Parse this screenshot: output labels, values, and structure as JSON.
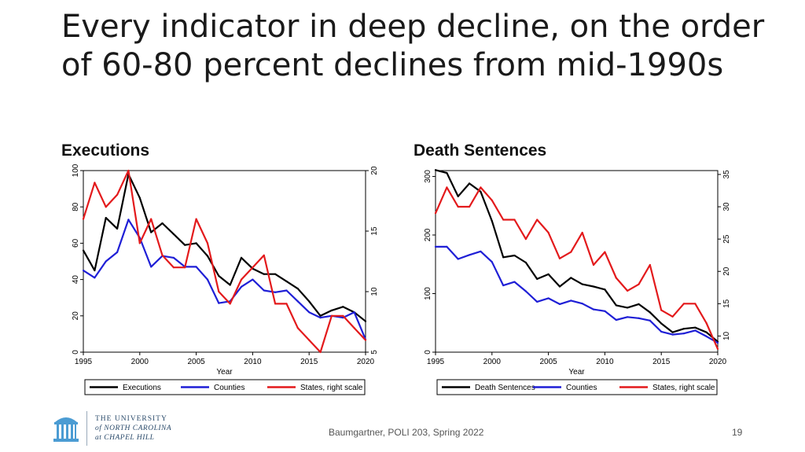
{
  "slide": {
    "title": "Every indicator in deep decline, on the order of 60-80 percent declines from mid-1990s",
    "footer": "Baumgartner, POLI 203, Spring 2022",
    "page_number": "19",
    "logo_lines": [
      "THE UNIVERSITY",
      "of NORTH CAROLINA",
      "at CHAPEL HILL"
    ]
  },
  "colors": {
    "series1": "#000000",
    "series2": "#1f1fd6",
    "series3": "#e31a1c"
  },
  "chart_data": [
    {
      "type": "line",
      "heading": "Executions",
      "xlabel": "Year",
      "xlim": [
        1995,
        2020
      ],
      "xticks": [
        1995,
        2000,
        2005,
        2010,
        2015,
        2020
      ],
      "left_axis": {
        "range": [
          0,
          100
        ],
        "ticks": [
          0,
          20,
          40,
          60,
          80,
          100
        ]
      },
      "right_axis": {
        "range": [
          5,
          20
        ],
        "ticks": [
          5,
          10,
          15,
          20
        ]
      },
      "x": [
        1995,
        1996,
        1997,
        1998,
        1999,
        2000,
        2001,
        2002,
        2003,
        2004,
        2005,
        2006,
        2007,
        2008,
        2009,
        2010,
        2011,
        2012,
        2013,
        2014,
        2015,
        2016,
        2017,
        2018,
        2019,
        2020
      ],
      "series": [
        {
          "name": "Executions",
          "axis": "left",
          "color": "#000000",
          "values": [
            56,
            45,
            74,
            68,
            98,
            85,
            66,
            71,
            65,
            59,
            60,
            53,
            42,
            37,
            52,
            46,
            43,
            43,
            39,
            35,
            28,
            20,
            23,
            25,
            22,
            17
          ]
        },
        {
          "name": "Counties",
          "axis": "left",
          "color": "#1f1fd6",
          "values": [
            45,
            41,
            50,
            55,
            73,
            63,
            47,
            53,
            52,
            47,
            47,
            40,
            27,
            28,
            36,
            40,
            34,
            33,
            34,
            28,
            22,
            19,
            20,
            19,
            22,
            7
          ]
        },
        {
          "name": "States, right scale",
          "axis": "right",
          "color": "#e31a1c",
          "values": [
            16,
            19,
            17,
            18,
            20,
            14,
            16,
            13,
            12,
            12,
            16,
            14,
            10,
            9,
            11,
            12,
            13,
            9,
            9,
            7,
            6,
            5,
            8,
            8,
            7,
            6
          ]
        }
      ],
      "legend": [
        "Executions",
        "Counties",
        "States, right scale"
      ],
      "legend_position": "bottom"
    },
    {
      "type": "line",
      "heading": "Death Sentences",
      "xlabel": "Year",
      "xlim": [
        1995,
        2020
      ],
      "xticks": [
        1995,
        2000,
        2005,
        2010,
        2015,
        2020
      ],
      "left_axis": {
        "range": [
          0,
          310
        ],
        "ticks": [
          0,
          100,
          200,
          300
        ]
      },
      "right_axis": {
        "range": [
          7.5,
          35.6
        ],
        "ticks": [
          10,
          15,
          20,
          25,
          30,
          35
        ]
      },
      "x": [
        1995,
        1996,
        1997,
        1998,
        1999,
        2000,
        2001,
        2002,
        2003,
        2004,
        2005,
        2006,
        2007,
        2008,
        2009,
        2010,
        2011,
        2012,
        2013,
        2014,
        2015,
        2016,
        2017,
        2018,
        2019,
        2020
      ],
      "series": [
        {
          "name": "Death Sentences",
          "axis": "left",
          "color": "#000000",
          "values": [
            311,
            306,
            266,
            288,
            274,
            224,
            162,
            165,
            153,
            125,
            133,
            112,
            127,
            116,
            112,
            107,
            80,
            76,
            82,
            68,
            49,
            34,
            40,
            42,
            34,
            18
          ]
        },
        {
          "name": "Counties",
          "axis": "left",
          "color": "#1f1fd6",
          "values": [
            180,
            180,
            159,
            166,
            172,
            154,
            114,
            120,
            104,
            86,
            92,
            82,
            88,
            83,
            73,
            70,
            55,
            60,
            58,
            54,
            35,
            30,
            32,
            37,
            27,
            16
          ]
        },
        {
          "name": "States, right scale",
          "axis": "right",
          "color": "#e31a1c",
          "values": [
            29,
            33,
            30,
            30,
            33,
            31,
            28,
            28,
            25,
            28,
            26,
            22,
            23,
            26,
            21,
            23,
            19,
            17,
            18,
            21,
            14,
            13,
            15,
            15,
            12,
            8
          ]
        }
      ],
      "legend": [
        "Death Sentences",
        "Counties",
        "States, right scale"
      ],
      "legend_position": "bottom"
    }
  ]
}
